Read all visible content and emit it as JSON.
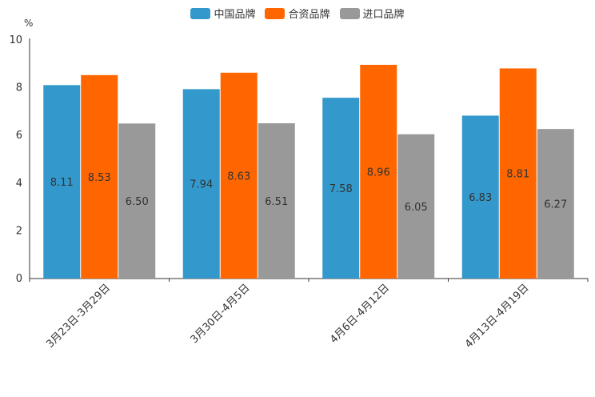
{
  "chart_data": {
    "type": "bar",
    "title": "",
    "unit_label": "%",
    "ylim": [
      0,
      10
    ],
    "yticks": [
      0,
      2,
      4,
      6,
      8,
      10
    ],
    "categories": [
      "3月23日-3月29日",
      "3月30日-4月5日",
      "4月6日-4月12日",
      "4月13日-4月19日"
    ],
    "series": [
      {
        "name": "中国品牌",
        "color": "#3399cc",
        "values": [
          8.11,
          7.94,
          7.58,
          6.83
        ]
      },
      {
        "name": "合资品牌",
        "color": "#ff6600",
        "values": [
          8.53,
          8.63,
          8.96,
          8.81
        ]
      },
      {
        "name": "进口品牌",
        "color": "#999999",
        "values": [
          6.5,
          6.51,
          6.05,
          6.27
        ]
      }
    ],
    "legend_position": "top-center"
  }
}
